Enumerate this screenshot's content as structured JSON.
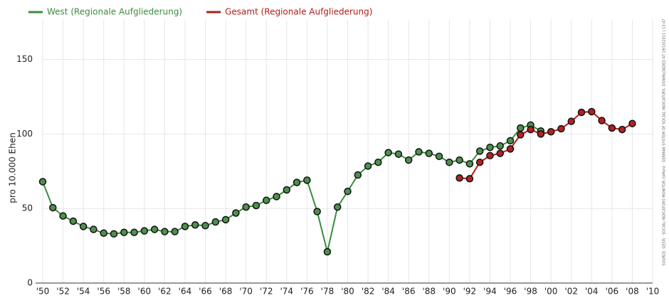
{
  "chart_data": {
    "type": "line",
    "y_label": "pro 10.000 Ehen",
    "source": "SOURCE: GESIS · SOCIAL INDICATORS MONITOR (SIMon) · GERMAN SYSTEM OF SOCIAL INDICATORS. DOWNLOADED AT 19/10/2011 | 13:47",
    "x": [
      1950,
      1951,
      1952,
      1953,
      1954,
      1955,
      1956,
      1957,
      1958,
      1959,
      1960,
      1961,
      1962,
      1963,
      1964,
      1965,
      1966,
      1967,
      1968,
      1969,
      1970,
      1971,
      1972,
      1973,
      1974,
      1975,
      1976,
      1977,
      1978,
      1979,
      1980,
      1981,
      1982,
      1983,
      1984,
      1985,
      1986,
      1987,
      1988,
      1989,
      1990,
      1991,
      1992,
      1993,
      1994,
      1995,
      1996,
      1997,
      1998,
      1999,
      2000,
      2001,
      2002,
      2003,
      2004,
      2005,
      2006,
      2007,
      2008
    ],
    "series": [
      {
        "name": "West (Regionale Aufgliederung)",
        "color": "#3d8b3d",
        "point_color": "#4f8f4f",
        "values": [
          68,
          50.6,
          45,
          41.5,
          38,
          36,
          33.5,
          33,
          34,
          34,
          35,
          36,
          34.5,
          34.5,
          38,
          39,
          38.5,
          41,
          42.5,
          47,
          51,
          52,
          55.5,
          58,
          62.5,
          67.5,
          69,
          48,
          21,
          51,
          61.5,
          72.5,
          78.5,
          81,
          87.5,
          86.5,
          82.5,
          88,
          87,
          85,
          81,
          82.5,
          80,
          88.5,
          91,
          92,
          95.5,
          104,
          106,
          102,
          null,
          null,
          null,
          null,
          null,
          null,
          null,
          null,
          null
        ]
      },
      {
        "name": "Gesamt (Regionale Aufgliederung)",
        "color": "#b01c1c",
        "point_color": "#b22222",
        "values": [
          null,
          null,
          null,
          null,
          null,
          null,
          null,
          null,
          null,
          null,
          null,
          null,
          null,
          null,
          null,
          null,
          null,
          null,
          null,
          null,
          null,
          null,
          null,
          null,
          null,
          null,
          null,
          null,
          null,
          null,
          null,
          null,
          null,
          null,
          null,
          null,
          null,
          null,
          null,
          null,
          null,
          70.5,
          70,
          81,
          85.5,
          87,
          90,
          99.5,
          103,
          100,
          101.5,
          103.5,
          108.5,
          114.5,
          115,
          109,
          104,
          103,
          107
        ]
      }
    ],
    "xlim": [
      1950,
      2010
    ],
    "ylim": [
      0,
      177
    ],
    "yticks": [
      0,
      50,
      100,
      150
    ],
    "xticks": [
      {
        "value": 1950,
        "label": "'50"
      },
      {
        "value": 1952,
        "label": "'52"
      },
      {
        "value": 1954,
        "label": "'54"
      },
      {
        "value": 1956,
        "label": "'56"
      },
      {
        "value": 1958,
        "label": "'58"
      },
      {
        "value": 1960,
        "label": "'60"
      },
      {
        "value": 1962,
        "label": "'62"
      },
      {
        "value": 1964,
        "label": "'64"
      },
      {
        "value": 1966,
        "label": "'66"
      },
      {
        "value": 1968,
        "label": "'68"
      },
      {
        "value": 1970,
        "label": "'70"
      },
      {
        "value": 1972,
        "label": "'72"
      },
      {
        "value": 1974,
        "label": "'74"
      },
      {
        "value": 1976,
        "label": "'76"
      },
      {
        "value": 1978,
        "label": "'78"
      },
      {
        "value": 1980,
        "label": "'80"
      },
      {
        "value": 1982,
        "label": "'82"
      },
      {
        "value": 1984,
        "label": "'84"
      },
      {
        "value": 1986,
        "label": "'86"
      },
      {
        "value": 1988,
        "label": "'88"
      },
      {
        "value": 1990,
        "label": "'90"
      },
      {
        "value": 1992,
        "label": "'92"
      },
      {
        "value": 1994,
        "label": "'94"
      },
      {
        "value": 1996,
        "label": "'96"
      },
      {
        "value": 1998,
        "label": "'98"
      },
      {
        "value": 2000,
        "label": "'00"
      },
      {
        "value": 2002,
        "label": "'02"
      },
      {
        "value": 2004,
        "label": "'04"
      },
      {
        "value": 2006,
        "label": "'06"
      },
      {
        "value": 2008,
        "label": "'08"
      },
      {
        "value": 2010,
        "label": "'10"
      }
    ],
    "grid": true,
    "legend": "top-left"
  }
}
